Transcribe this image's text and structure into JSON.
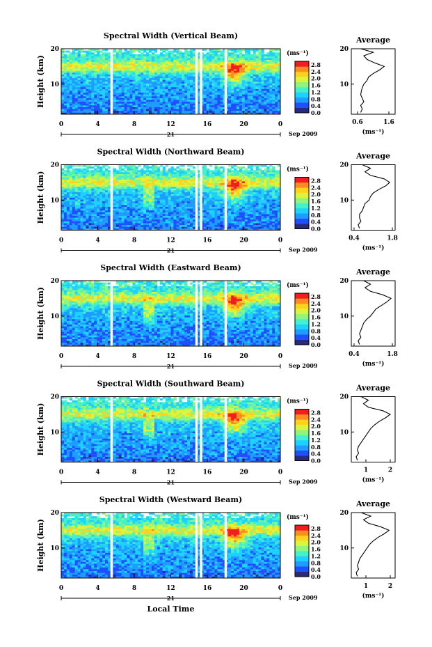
{
  "chart_data": {
    "type": "heatmap",
    "date_label": "Sep 2009",
    "day_label": "21",
    "xlabel": "Local Time",
    "ylabel": "Height (km)",
    "x_ticks": [
      "0",
      "4",
      "8",
      "12",
      "16",
      "20",
      "0"
    ],
    "xlim": [
      0,
      24
    ],
    "y_ticks": [
      "10",
      "20"
    ],
    "ylim": [
      1.5,
      20
    ],
    "colorbar": {
      "unit": "(ms⁻¹)",
      "ticks": [
        "0.0",
        "0.4",
        "0.8",
        "1.2",
        "1.6",
        "2.0",
        "2.4",
        "2.8"
      ],
      "range": [
        0,
        3.0
      ],
      "colors": [
        "#2a2a7a",
        "#1e50ff",
        "#1e9cff",
        "#1ed2ff",
        "#46f0c8",
        "#8ff57f",
        "#dcf53c",
        "#ffd21e",
        "#ff8c1e",
        "#f01e1e"
      ]
    },
    "profile_title": "Average",
    "profile_ylim": [
      1.5,
      20
    ],
    "profile_yticks": [
      "10",
      "20"
    ],
    "profile_unit": "(ms⁻¹)",
    "data_gaps_hours": [
      5.5,
      14.8,
      15.3,
      18.0
    ],
    "panels": [
      {
        "title": "Spectral Width (Vertical Beam)",
        "profile_xticks": [
          "0.6",
          "1.6"
        ],
        "profile_xlim": [
          0.4,
          1.8
        ],
        "profile": {
          "height": [
            2,
            3,
            4,
            5,
            6,
            7,
            8,
            9,
            10,
            11,
            12,
            13,
            14,
            15,
            16,
            17,
            18,
            19,
            20
          ],
          "width": [
            0.7,
            0.75,
            0.7,
            0.8,
            0.75,
            0.7,
            0.72,
            0.75,
            0.8,
            0.9,
            0.95,
            1.1,
            1.3,
            1.45,
            1.15,
            0.9,
            0.8,
            1.1,
            0.7
          ]
        }
      },
      {
        "title": "Spectral Width (Northward Beam)",
        "profile_xticks": [
          "0.4",
          "1.8"
        ],
        "profile_xlim": [
          0.3,
          1.9
        ],
        "profile": {
          "height": [
            2,
            3,
            4,
            5,
            6,
            7,
            8,
            9,
            10,
            11,
            12,
            13,
            14,
            15,
            16,
            17,
            18,
            19,
            20
          ],
          "width": [
            0.6,
            0.55,
            0.65,
            0.6,
            0.6,
            0.7,
            0.75,
            0.8,
            0.95,
            1.0,
            1.1,
            1.3,
            1.55,
            1.7,
            1.5,
            1.0,
            0.8,
            1.0,
            0.7
          ]
        }
      },
      {
        "title": "Spectral Width (Eastward Beam)",
        "profile_xticks": [
          "0.4",
          "1.8"
        ],
        "profile_xlim": [
          0.3,
          1.9
        ],
        "profile": {
          "height": [
            2,
            3,
            4,
            5,
            6,
            7,
            8,
            9,
            10,
            11,
            12,
            13,
            14,
            15,
            16,
            17,
            18,
            19,
            20
          ],
          "width": [
            0.6,
            0.55,
            0.65,
            0.6,
            0.65,
            0.7,
            0.75,
            0.85,
            1.0,
            1.1,
            1.2,
            1.4,
            1.6,
            1.75,
            1.45,
            1.0,
            0.8,
            1.0,
            0.75
          ]
        }
      },
      {
        "title": "Spectral Width (Southward Beam)",
        "profile_xticks": [
          "1",
          "2"
        ],
        "profile_xlim": [
          0.4,
          2.2
        ],
        "profile": {
          "height": [
            2,
            3,
            4,
            5,
            6,
            7,
            8,
            9,
            10,
            11,
            12,
            13,
            14,
            15,
            16,
            17,
            18,
            19,
            20
          ],
          "width": [
            0.65,
            0.6,
            0.7,
            0.65,
            0.7,
            0.8,
            0.9,
            1.0,
            1.1,
            1.2,
            1.35,
            1.55,
            1.8,
            2.0,
            1.7,
            1.1,
            0.9,
            1.1,
            0.8
          ]
        }
      },
      {
        "title": "Spectral Width (Westward Beam)",
        "profile_xticks": [
          "1",
          "2"
        ],
        "profile_xlim": [
          0.4,
          2.2
        ],
        "profile": {
          "height": [
            2,
            3,
            4,
            5,
            6,
            7,
            8,
            9,
            10,
            11,
            12,
            13,
            14,
            15,
            16,
            17,
            18,
            19,
            20
          ],
          "width": [
            0.65,
            0.6,
            0.7,
            0.65,
            0.7,
            0.75,
            0.85,
            0.95,
            1.05,
            1.15,
            1.3,
            1.5,
            1.75,
            1.95,
            1.6,
            1.1,
            0.9,
            1.2,
            0.8
          ]
        }
      }
    ]
  }
}
